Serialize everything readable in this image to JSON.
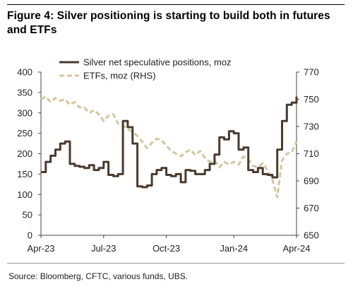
{
  "title": "Figure 4: Silver positioning is starting to build both in futures and ETFs",
  "source": "Source: Bloomberg, CFTC, various funds, UBS.",
  "chart_data": {
    "type": "line",
    "title": "Figure 4: Silver positioning is starting to build both in futures and ETFs",
    "x_ticks": [
      "Apr-23",
      "Jul-23",
      "Oct-23",
      "Jan-24",
      "Apr-24"
    ],
    "y_left": {
      "ticks": [
        "0",
        "50",
        "100",
        "150",
        "200",
        "250",
        "300",
        "350",
        "400"
      ],
      "ylim": [
        0,
        400
      ]
    },
    "y_right": {
      "ticks": [
        "650",
        "670",
        "690",
        "710",
        "730",
        "750",
        "770"
      ],
      "ylim": [
        650,
        770
      ]
    },
    "legend_placement": "top-left",
    "grid": false,
    "series": [
      {
        "name": "Silver net speculative positions, moz",
        "axis": "left",
        "color": "#4a3a2f",
        "style": "solid",
        "x_weeks": [
          0,
          1,
          2,
          3,
          4,
          5,
          6,
          7,
          8,
          9,
          10,
          11,
          12,
          13,
          14,
          15,
          16,
          17,
          18,
          19,
          20,
          21,
          22,
          23,
          24,
          25,
          26,
          27,
          28,
          29,
          30,
          31,
          32,
          33,
          34,
          35,
          36,
          37,
          38,
          39,
          40,
          41,
          42,
          43,
          44,
          45,
          46,
          47,
          48,
          49,
          50,
          51,
          52,
          53
        ],
        "values": [
          155,
          180,
          195,
          210,
          225,
          230,
          175,
          170,
          168,
          165,
          172,
          160,
          165,
          180,
          148,
          145,
          150,
          280,
          265,
          225,
          120,
          118,
          122,
          150,
          160,
          165,
          148,
          145,
          150,
          130,
          160,
          158,
          150,
          150,
          160,
          175,
          198,
          240,
          235,
          255,
          250,
          210,
          215,
          160,
          155,
          165,
          150,
          148,
          142,
          210,
          280,
          320,
          325,
          340
        ]
      },
      {
        "name": "ETFs, moz (RHS)",
        "axis": "right",
        "color": "#d3c7a0",
        "style": "dashed",
        "x_weeks": [
          0,
          1,
          2,
          3,
          4,
          5,
          6,
          7,
          8,
          9,
          10,
          11,
          12,
          13,
          14,
          15,
          16,
          17,
          18,
          19,
          20,
          21,
          22,
          23,
          24,
          25,
          26,
          27,
          28,
          29,
          30,
          31,
          32,
          33,
          34,
          35,
          36,
          37,
          38,
          39,
          40,
          41,
          42,
          43,
          44,
          45,
          46,
          47,
          48,
          49,
          50,
          51,
          52,
          53
        ],
        "values": [
          750,
          752,
          748,
          751,
          749,
          750,
          746,
          748,
          744,
          744,
          740,
          742,
          739,
          734,
          738,
          739,
          732,
          731,
          728,
          726,
          723,
          719,
          714,
          718,
          721,
          720,
          716,
          712,
          710,
          708,
          711,
          713,
          709,
          712,
          707,
          704,
          705,
          700,
          704,
          702,
          704,
          702,
          708,
          706,
          701,
          700,
          703,
          698,
          691,
          678,
          705,
          710,
          711,
          719
        ]
      }
    ]
  }
}
